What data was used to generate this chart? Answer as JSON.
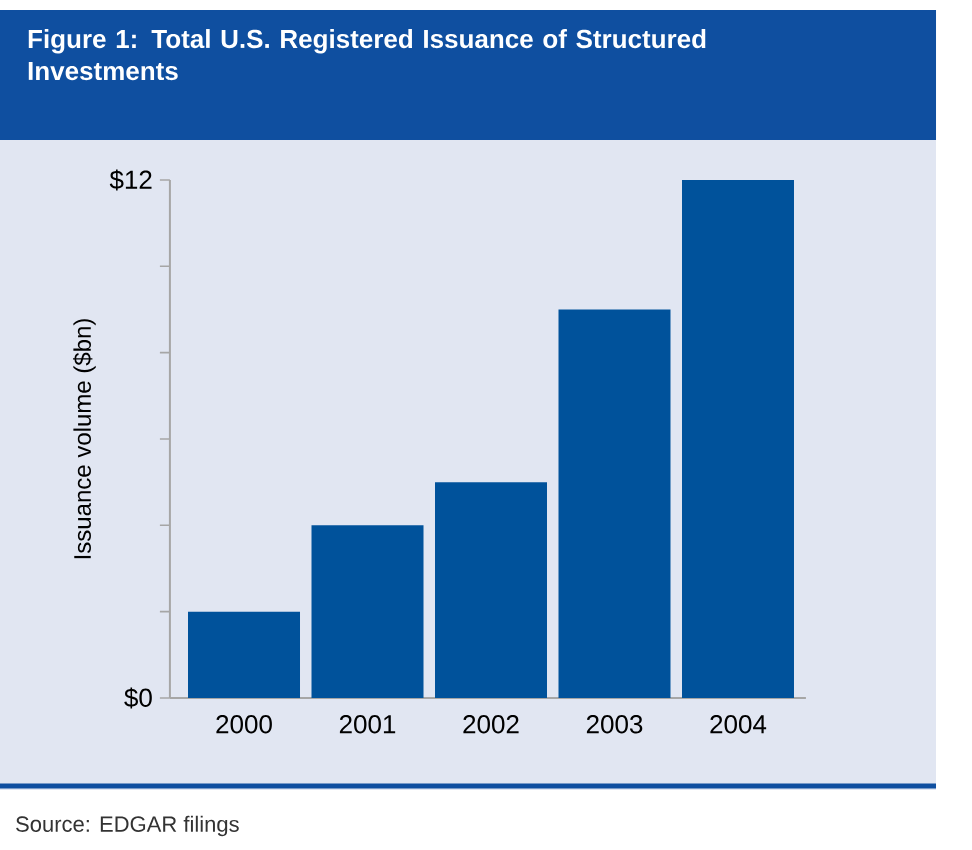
{
  "chart_data": {
    "type": "bar",
    "title": "Figure 1: Total U.S. Registered Issuance of Structured Investments",
    "ylabel": "Issuance volume ($bn)",
    "categories": [
      "2000",
      "2001",
      "2002",
      "2003",
      "2004"
    ],
    "values": [
      2,
      4,
      5,
      9,
      12
    ],
    "color": "#00529b",
    "ylim": [
      0,
      12
    ],
    "yticks": [
      {
        "value": 0,
        "label": "$0"
      },
      {
        "value": 2,
        "label": null
      },
      {
        "value": 4,
        "label": null
      },
      {
        "value": 6,
        "label": null
      },
      {
        "value": 8,
        "label": null
      },
      {
        "value": 10,
        "label": null
      },
      {
        "value": 12,
        "label": "$12"
      }
    ],
    "annotations": [
      "Source: EDGAR filings"
    ]
  }
}
